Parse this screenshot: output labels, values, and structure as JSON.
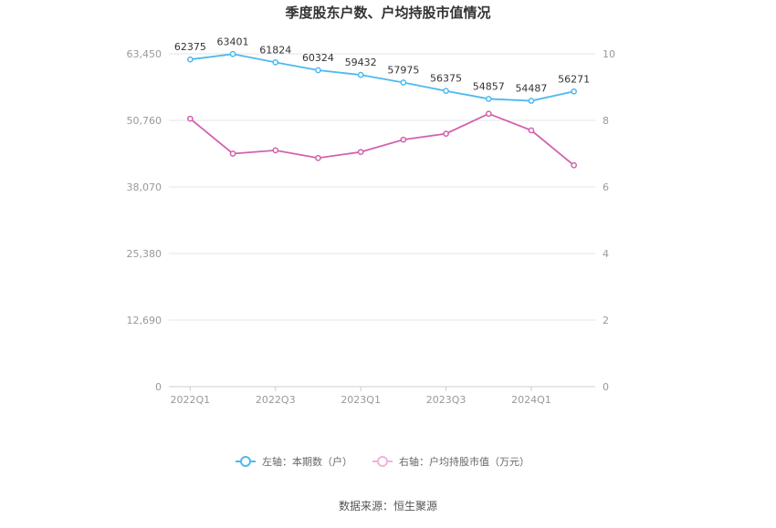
{
  "chart_data": {
    "type": "line",
    "title": "季度股东户数、户均持股市值情况",
    "x_tick_labels": [
      "2022Q1",
      "2022Q3",
      "2023Q1",
      "2023Q3",
      "2024Q1"
    ],
    "x_count": 10,
    "left_axis": {
      "ticks": [
        0,
        12690,
        25380,
        38070,
        50760,
        63450
      ],
      "tick_labels": [
        "0",
        "12,690",
        "25,380",
        "38,070",
        "50,760",
        "63,450"
      ],
      "ylim": [
        0,
        63450
      ]
    },
    "right_axis": {
      "ticks": [
        0,
        2,
        4,
        6,
        8,
        10
      ],
      "tick_labels": [
        "0",
        "2",
        "4",
        "6",
        "8",
        "10"
      ],
      "ylim": [
        0,
        10
      ]
    },
    "series": [
      {
        "name": "左轴：本期数（户）",
        "axis": "left",
        "color": "#4db9ef",
        "values": [
          62375,
          63401,
          61824,
          60324,
          59432,
          57975,
          56375,
          54857,
          54487,
          56271
        ],
        "labels": [
          "62375",
          "63401",
          "61824",
          "60324",
          "59432",
          "57975",
          "56375",
          "54857",
          "54487",
          "56271"
        ]
      },
      {
        "name": "右轴：户均持股市值（万元）",
        "axis": "right",
        "color": "#d162ad",
        "values": [
          8.05,
          7.0,
          7.1,
          6.87,
          7.05,
          7.42,
          7.6,
          8.2,
          7.7,
          6.65
        ]
      }
    ],
    "grid": true,
    "legend_position": "bottom"
  },
  "footer": {
    "source": "数据来源：恒生聚源"
  }
}
